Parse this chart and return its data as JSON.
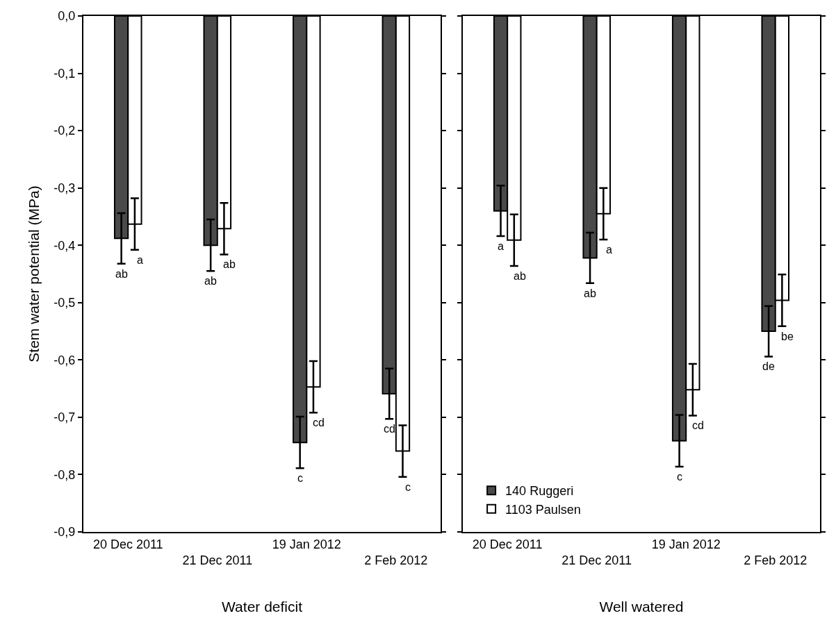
{
  "chart_data": [
    {
      "type": "bar",
      "xlabel": "Water deficit",
      "ylabel": "Stem water potential (MPa)",
      "categories": [
        "20 Dec 2011",
        "21 Dec 2011",
        "19 Jan 2012",
        "2 Feb 2012"
      ],
      "series": [
        {
          "color": "#4a4a4a",
          "values": [
            -0.388,
            -0.4,
            -0.744,
            -0.659
          ],
          "errors": [
            0.044,
            0.045,
            0.045,
            0.044
          ],
          "value_labels": [
            "ab",
            "ab",
            "c",
            "cd"
          ]
        },
        {
          "color": "#ffffff",
          "values": [
            -0.363,
            -0.371,
            -0.647,
            -0.759
          ],
          "errors": [
            0.045,
            0.045,
            0.045,
            0.045
          ],
          "value_labels": [
            "a",
            "ab",
            "cd",
            "c"
          ]
        }
      ],
      "ylim": [
        -0.9,
        0
      ],
      "yticks": [
        {
          "value": -0.9,
          "label": "-0,9"
        },
        {
          "value": -0.8,
          "label": "-0,8"
        },
        {
          "value": -0.7,
          "label": "-0,7"
        },
        {
          "value": -0.6,
          "label": "-0,6"
        },
        {
          "value": -0.5,
          "label": "-0,5"
        },
        {
          "value": -0.4,
          "label": "-0,4"
        },
        {
          "value": -0.3,
          "label": "-0,3"
        },
        {
          "value": -0.2,
          "label": "-0,2"
        },
        {
          "value": -0.1,
          "label": "-0,1"
        },
        {
          "value": 0,
          "label": "0,0"
        }
      ],
      "legend": false
    },
    {
      "type": "bar",
      "xlabel": "Well watered",
      "categories": [
        "20 Dec 2011",
        "21 Dec 2011",
        "19 Jan 2012",
        "2 Feb 2012"
      ],
      "series": [
        {
          "name": "140 Ruggeri",
          "color": "#4a4a4a",
          "values": [
            -0.34,
            -0.422,
            -0.741,
            -0.55
          ],
          "errors": [
            0.044,
            0.044,
            0.045,
            0.044
          ],
          "value_labels": [
            "a",
            "ab",
            "c",
            "de"
          ]
        },
        {
          "name": "1103 Paulsen",
          "color": "#ffffff",
          "values": [
            -0.391,
            -0.345,
            -0.652,
            -0.496
          ],
          "errors": [
            0.045,
            0.045,
            0.045,
            0.045
          ],
          "value_labels": [
            "ab",
            "a",
            "cd",
            "be"
          ]
        }
      ],
      "ylim": [
        -0.9,
        0
      ],
      "yticks": [
        {
          "value": -0.9,
          "label": null
        },
        {
          "value": -0.8,
          "label": null
        },
        {
          "value": -0.7,
          "label": null
        },
        {
          "value": -0.6,
          "label": null
        },
        {
          "value": -0.5,
          "label": null
        },
        {
          "value": -0.4,
          "label": null
        },
        {
          "value": -0.3,
          "label": null
        },
        {
          "value": -0.2,
          "label": null
        },
        {
          "value": -0.1,
          "label": null
        },
        {
          "value": 0,
          "label": null
        }
      ],
      "tick_labels": "x",
      "legend": "bottom left"
    }
  ]
}
